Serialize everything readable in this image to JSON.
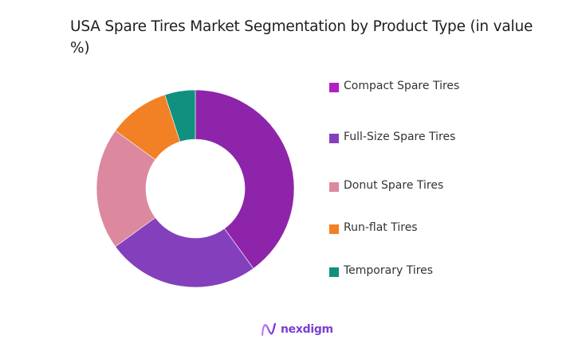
{
  "title": "USA Spare Tires Market Segmentation by Product Type (in value %)",
  "chart_data": {
    "type": "pie",
    "subtype": "donut",
    "title": "USA Spare Tires Market Segmentation by Product Type (in value %)",
    "categories": [
      "Compact Spare Tires",
      "Full-Size Spare Tires",
      "Donut Spare Tires",
      "Run-flat Tires",
      "Temporary Tires"
    ],
    "values": [
      40,
      25,
      20,
      10,
      5
    ],
    "colors": [
      "#8e24aa",
      "#8440bc",
      "#dc889f",
      "#f28025",
      "#10917f"
    ],
    "legend_position": "right",
    "unit": "%"
  },
  "legend": {
    "items": [
      {
        "label": "Compact Spare Tires",
        "color": "#b31fc0"
      },
      {
        "label": "Full-Size Spare Tires",
        "color": "#8440bc"
      },
      {
        "label": "Donut Spare Tires",
        "color": "#dc889f"
      },
      {
        "label": "Run-flat Tires",
        "color": "#f28025"
      },
      {
        "label": "Temporary Tires",
        "color": "#10917f"
      }
    ]
  },
  "branding": {
    "logo_text": "nexdigm"
  }
}
